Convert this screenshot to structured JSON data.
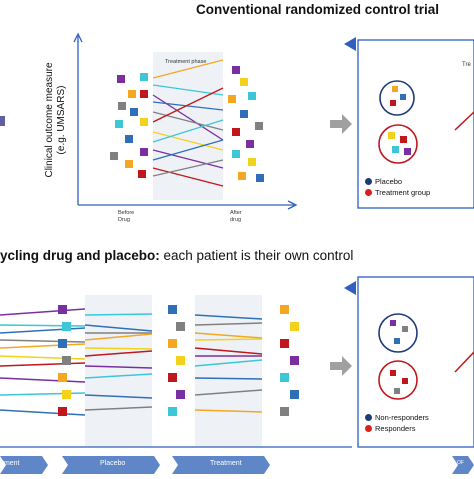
{
  "headers": {
    "top_title": "Conventional randomized control trial",
    "bottom_title_bold": "ycling drug and placebo:",
    "bottom_title_rest": " each patient is their own control"
  },
  "top_panel": {
    "y_axis_label_line1": "Clinical outcome measure",
    "y_axis_label_line2": "(e.g. UMSARS)",
    "phase_label": "Treatment phase",
    "x_left_line1": "Before",
    "x_left_line2": "Drug",
    "x_right_line1": "After",
    "x_right_line2": "drug",
    "right_partial_label": "Tre",
    "legend": [
      {
        "label": "Placebo",
        "color": "#1f3a7a"
      },
      {
        "label": "Treatment group",
        "color": "#d81f1f"
      }
    ]
  },
  "bottom_panel": {
    "phases": [
      "tment",
      "Placebo",
      "Treatment",
      "OF"
    ],
    "legend": [
      {
        "label": "Non-responders",
        "color": "#1f3a7a"
      },
      {
        "label": "Responders",
        "color": "#d81f1f"
      }
    ]
  },
  "colors": {
    "purple": "#7a2fa0",
    "cyan": "#3cc6d8",
    "blue": "#2f6fb8",
    "gray": "#808080",
    "orange": "#f5a623",
    "yellow": "#f2d21a",
    "red": "#c0171c",
    "arrow": "#3b6fd0",
    "phase_bg": "#5f86c7"
  }
}
